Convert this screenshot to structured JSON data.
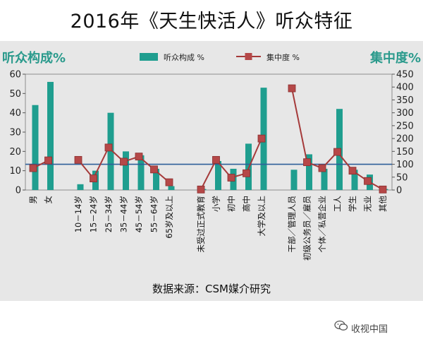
{
  "title": "2016年《天生快活人》听众特征",
  "source": "数据来源：CSM媒介研究",
  "watermark": "收视中国",
  "chart_data": {
    "type": "bar+line",
    "left_axis_title": "听众构成%",
    "right_axis_title": "集中度%",
    "left_ylim": [
      0,
      60
    ],
    "left_ticks": [
      0,
      10,
      20,
      30,
      40,
      50,
      60
    ],
    "right_ylim": [
      0,
      450
    ],
    "right_ticks": [
      0,
      50,
      100,
      150,
      200,
      250,
      300,
      350,
      400,
      450
    ],
    "reference_line_right": 100,
    "colors": {
      "bar": "#1f9e8f",
      "line": "#a53a3a",
      "marker": "#b54848",
      "ref": "#2f5f9a",
      "left_title": "#2a9a8c",
      "right_title": "#2a9a8c"
    },
    "series": [
      {
        "name": "听众构成 %",
        "kind": "bar",
        "axis": "left"
      },
      {
        "name": "集中度 %",
        "kind": "line",
        "axis": "right"
      }
    ],
    "groups": [
      {
        "categories": [
          "男",
          "女"
        ],
        "bars": [
          44,
          56
        ],
        "line": [
          85,
          115
        ]
      },
      {
        "categories": [
          "10－14岁",
          "15－24岁",
          "25－34岁",
          "35－44岁",
          "45－54岁",
          "55－64岁",
          "65岁及以上"
        ],
        "bars": [
          3,
          10,
          40,
          20,
          18,
          11,
          2
        ],
        "line": [
          117,
          45,
          165,
          110,
          130,
          80,
          30
        ]
      },
      {
        "categories": [
          "未受过正式教育",
          "小学",
          "初中",
          "高中",
          "大学及以上"
        ],
        "bars": [
          0.5,
          15,
          11,
          24,
          53
        ],
        "line": [
          2,
          117,
          48,
          65,
          200
        ]
      },
      {
        "categories": [
          "干部／管理人员",
          "初级公务员／雇员",
          "个体／私营企业",
          "工人",
          "学生",
          "无业",
          "其他"
        ],
        "bars": [
          10.5,
          18.5,
          11,
          42,
          10.5,
          8,
          0.5
        ],
        "line": [
          395,
          108,
          85,
          148,
          75,
          35,
          2
        ]
      }
    ]
  }
}
